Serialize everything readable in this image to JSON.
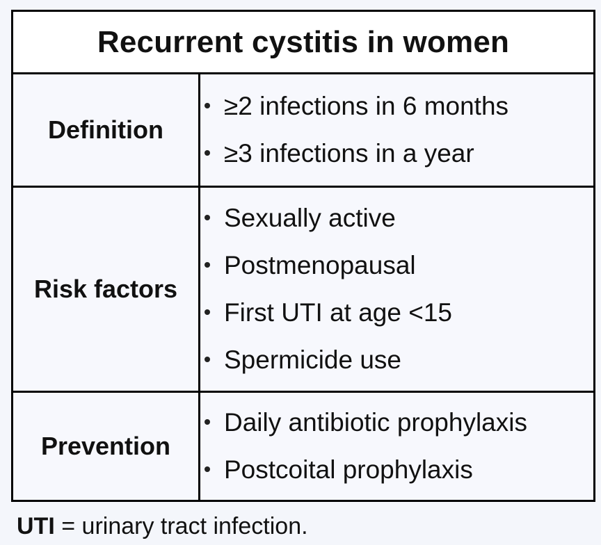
{
  "table": {
    "title": "Recurrent cystitis in women",
    "rows": [
      {
        "label": "Definition",
        "items": [
          "≥2 infections in 6 months",
          "≥3 infections in a year"
        ]
      },
      {
        "label": "Risk factors",
        "items": [
          "Sexually active",
          "Postmenopausal",
          "First UTI at age <15",
          "Spermicide use"
        ]
      },
      {
        "label": "Prevention",
        "items": [
          "Daily antibiotic prophylaxis",
          "Postcoital prophylaxis"
        ]
      }
    ]
  },
  "footnote": {
    "abbr": "UTI",
    "text": " = urinary tract infection."
  }
}
